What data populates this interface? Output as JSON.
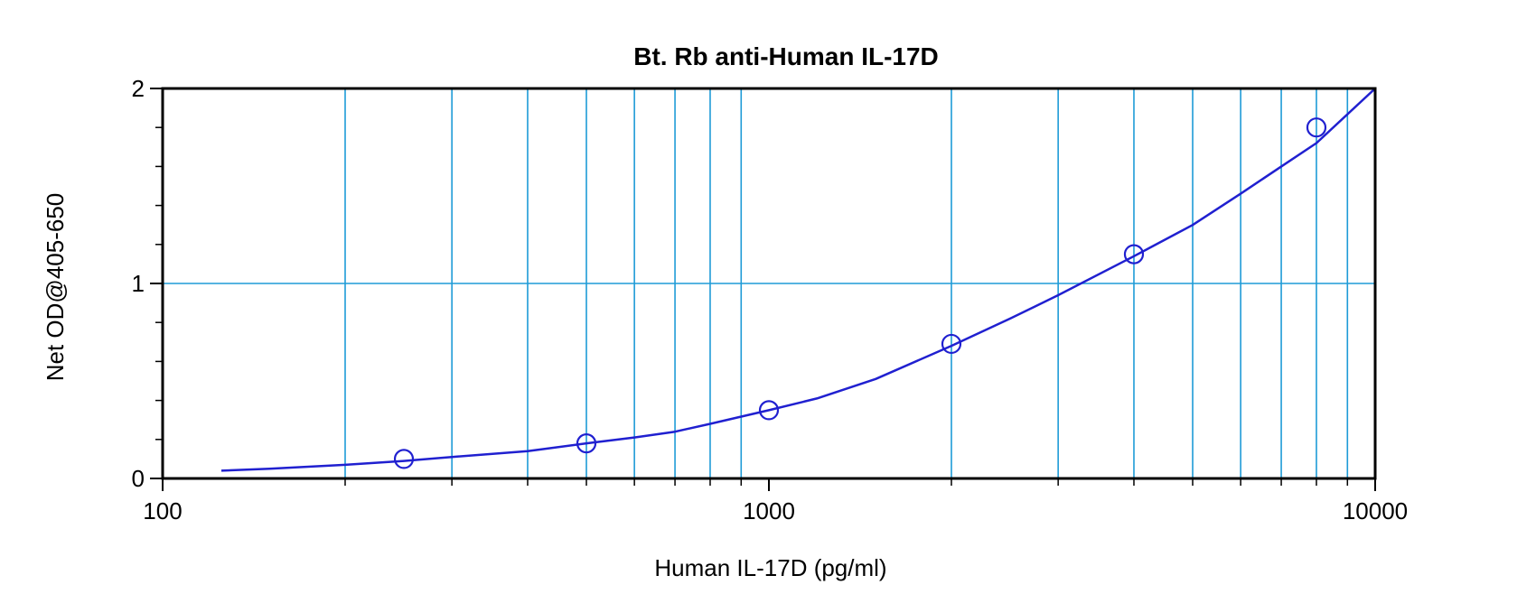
{
  "chart_data": {
    "type": "scatter",
    "title": "Bt. Rb anti-Human IL-17D",
    "xlabel": "Human IL-17D (pg/ml)",
    "ylabel": "Net OD@405-650",
    "x_scale": "log",
    "xlim": [
      100,
      10000
    ],
    "ylim": [
      0,
      2
    ],
    "x_ticks": [
      {
        "value": 100,
        "label": "100"
      },
      {
        "value": 1000,
        "label": "1000"
      },
      {
        "value": 10000,
        "label": "10000"
      }
    ],
    "y_ticks": [
      {
        "value": 0,
        "label": "0"
      },
      {
        "value": 1,
        "label": "1"
      },
      {
        "value": 2,
        "label": "2"
      }
    ],
    "grid": true,
    "series": [
      {
        "points": [
          {
            "x": 250,
            "y": 0.1
          },
          {
            "x": 500,
            "y": 0.18
          },
          {
            "x": 1000,
            "y": 0.35
          },
          {
            "x": 2000,
            "y": 0.69
          },
          {
            "x": 4000,
            "y": 1.15
          },
          {
            "x": 8000,
            "y": 1.8
          }
        ],
        "fit_curve": [
          {
            "x": 125,
            "y": 0.04
          },
          {
            "x": 150,
            "y": 0.05
          },
          {
            "x": 200,
            "y": 0.07
          },
          {
            "x": 250,
            "y": 0.09
          },
          {
            "x": 300,
            "y": 0.11
          },
          {
            "x": 400,
            "y": 0.14
          },
          {
            "x": 500,
            "y": 0.18
          },
          {
            "x": 600,
            "y": 0.21
          },
          {
            "x": 700,
            "y": 0.24
          },
          {
            "x": 800,
            "y": 0.28
          },
          {
            "x": 1000,
            "y": 0.35
          },
          {
            "x": 1200,
            "y": 0.41
          },
          {
            "x": 1500,
            "y": 0.51
          },
          {
            "x": 2000,
            "y": 0.68
          },
          {
            "x": 2500,
            "y": 0.82
          },
          {
            "x": 3000,
            "y": 0.94
          },
          {
            "x": 4000,
            "y": 1.14
          },
          {
            "x": 5000,
            "y": 1.3
          },
          {
            "x": 6000,
            "y": 1.46
          },
          {
            "x": 7000,
            "y": 1.6
          },
          {
            "x": 8000,
            "y": 1.72
          },
          {
            "x": 10000,
            "y": 2.0
          }
        ]
      }
    ],
    "colors": {
      "series": "#2020d0",
      "grid": "#1e9bd7",
      "axis": "#000000"
    }
  }
}
